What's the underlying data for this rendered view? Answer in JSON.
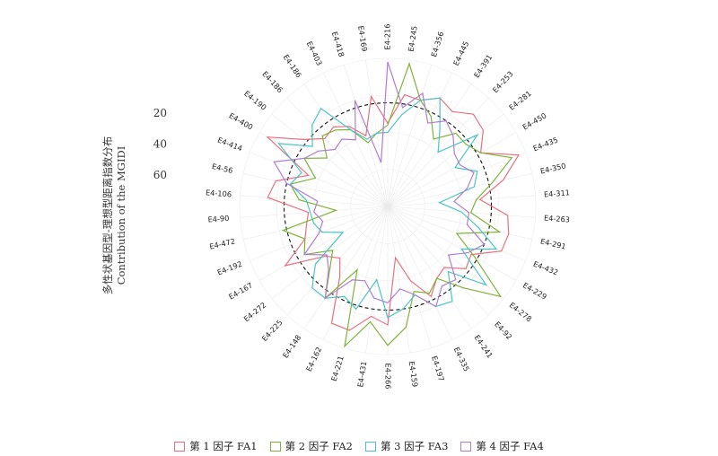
{
  "chart_data": {
    "type": "radar",
    "ylabel_lines": [
      "多性状基因型-理想型距离指数分布",
      "Contribution of the MGIDI"
    ],
    "radial_ticks": [
      "20",
      "40",
      "60"
    ],
    "radial_range": [
      0,
      80
    ],
    "radial_reversed": true,
    "ideotype_value": 24,
    "categories": [
      "E4-216",
      "E4-245",
      "E4-356",
      "E4-445",
      "E4-391",
      "E4-253",
      "E4-281",
      "E4-450",
      "E4-435",
      "E4-350",
      "E4-311",
      "E4-263",
      "E4-291",
      "E4-432",
      "E4-229",
      "E4-278",
      "E4-92",
      "E4-241",
      "E4-335",
      "E4-197",
      "E4-159",
      "E4-266",
      "E4-431",
      "E4-221",
      "E4-162",
      "E4-148",
      "E4-225",
      "E4-272",
      "E4-167",
      "E4-192",
      "E4-472",
      "E4-90",
      "E4-106",
      "E4-56",
      "E4-414",
      "E4-400",
      "E4-190",
      "E4-186",
      "E4-186",
      "E4-403",
      "E4-418",
      "E4-169"
    ],
    "series": [
      {
        "name": "第 1 因子 FA1",
        "color": "#e8707e",
        "values": [
          35,
          19,
          20,
          15,
          18,
          12,
          14,
          22,
          4,
          16,
          30,
          15,
          13,
          14,
          28,
          26,
          35,
          33,
          26,
          38,
          52,
          16,
          20,
          10,
          10,
          34,
          42,
          37,
          16,
          32,
          35,
          37,
          15,
          18,
          34,
          5,
          22,
          30,
          28,
          32,
          40,
          20
        ]
      },
      {
        "name": "第 2 因子 FA2",
        "color": "#7eb33a",
        "values": [
          36,
          2,
          20,
          26,
          36,
          26,
          26,
          22,
          8,
          22,
          32,
          35,
          18,
          40,
          26,
          2,
          20,
          33,
          28,
          32,
          14,
          5,
          17,
          1,
          42,
          20,
          34,
          42,
          28,
          32,
          22,
          52,
          32,
          26,
          38,
          28,
          38,
          28,
          30,
          34,
          44,
          40
        ]
      },
      {
        "name": "第 3 因子 FA3",
        "color": "#4cc4c4",
        "values": [
          40,
          30,
          20,
          15,
          30,
          40,
          18,
          38,
          28,
          32,
          52,
          40,
          30,
          17,
          34,
          12,
          32,
          18,
          20,
          30,
          24,
          20,
          40,
          22,
          26,
          20,
          20,
          30,
          52,
          42,
          39,
          38,
          36,
          26,
          30,
          12,
          28,
          20,
          16,
          34,
          42,
          40
        ]
      },
      {
        "name": "第 4 因子 FA4",
        "color": "#b07ed0",
        "values": [
          2,
          26,
          16,
          30,
          24,
          28,
          34,
          35,
          30,
          36,
          44,
          36,
          36,
          24,
          30,
          38,
          26,
          28,
          20,
          30,
          35,
          28,
          30,
          38,
          36,
          20,
          33,
          38,
          28,
          40,
          44,
          40,
          42,
          24,
          14,
          28,
          32,
          38,
          36,
          40,
          20,
          56
        ]
      }
    ],
    "legend": {
      "position": "bottom"
    }
  }
}
